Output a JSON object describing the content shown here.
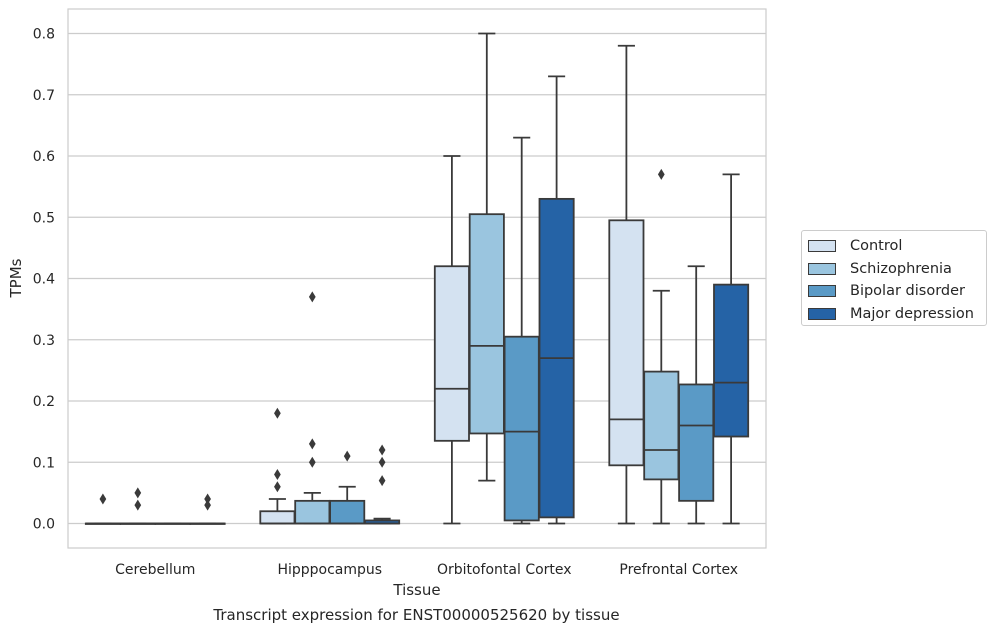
{
  "caption": "Transcript expression for ENST00000525620 by tissue",
  "chart_data": {
    "type": "boxplot",
    "xlabel": "Tissue",
    "ylabel": "TPMs",
    "ylim": [
      -0.04,
      0.84
    ],
    "yticks": [
      "0.0",
      "0.1",
      "0.2",
      "0.3",
      "0.4",
      "0.5",
      "0.6",
      "0.7",
      "0.8"
    ],
    "grid": true,
    "legend_position": "right",
    "categories": [
      "Cerebellum",
      "Hipppocampus",
      "Orbitofontal Cortex",
      "Prefrontal Cortex"
    ],
    "series": [
      {
        "name": "Control",
        "color": "#d4e2f1",
        "boxes": [
          {
            "min": 0,
            "q1": 0,
            "median": 0,
            "q3": 0,
            "max": 0,
            "outliers": [
              0.04
            ]
          },
          {
            "min": 0,
            "q1": 0,
            "median": 0,
            "q3": 0.02,
            "max": 0.04,
            "outliers": [
              0.06,
              0.08,
              0.18
            ]
          },
          {
            "min": 0,
            "q1": 0.135,
            "median": 0.22,
            "q3": 0.42,
            "max": 0.6,
            "outliers": []
          },
          {
            "min": 0,
            "q1": 0.095,
            "median": 0.17,
            "q3": 0.495,
            "max": 0.78,
            "outliers": []
          }
        ]
      },
      {
        "name": "Schizophrenia",
        "color": "#9ac5df",
        "boxes": [
          {
            "min": 0,
            "q1": 0,
            "median": 0,
            "q3": 0,
            "max": 0,
            "outliers": [
              0.03,
              0.05
            ]
          },
          {
            "min": 0,
            "q1": 0,
            "median": 0,
            "q3": 0.037,
            "max": 0.05,
            "outliers": [
              0.1,
              0.13,
              0.37
            ]
          },
          {
            "min": 0.07,
            "q1": 0.147,
            "median": 0.29,
            "q3": 0.505,
            "max": 0.8,
            "outliers": []
          },
          {
            "min": 0,
            "q1": 0.072,
            "median": 0.12,
            "q3": 0.248,
            "max": 0.38,
            "outliers": [
              0.57
            ]
          }
        ]
      },
      {
        "name": "Bipolar disorder",
        "color": "#5a9ac6",
        "boxes": [
          {
            "min": 0,
            "q1": 0,
            "median": 0,
            "q3": 0,
            "max": 0,
            "outliers": []
          },
          {
            "min": 0,
            "q1": 0,
            "median": 0,
            "q3": 0.037,
            "max": 0.06,
            "outliers": [
              0.11
            ]
          },
          {
            "min": 0,
            "q1": 0.005,
            "median": 0.15,
            "q3": 0.305,
            "max": 0.63,
            "outliers": []
          },
          {
            "min": 0,
            "q1": 0.037,
            "median": 0.16,
            "q3": 0.227,
            "max": 0.42,
            "outliers": []
          }
        ]
      },
      {
        "name": "Major depression",
        "color": "#2563a6",
        "boxes": [
          {
            "min": 0,
            "q1": 0,
            "median": 0,
            "q3": 0,
            "max": 0,
            "outliers": [
              0.03,
              0.04
            ]
          },
          {
            "min": 0,
            "q1": 0,
            "median": 0,
            "q3": 0.005,
            "max": 0.008,
            "outliers": [
              0.07,
              0.1,
              0.12
            ]
          },
          {
            "min": 0,
            "q1": 0.01,
            "median": 0.27,
            "q3": 0.53,
            "max": 0.73,
            "outliers": []
          },
          {
            "min": 0,
            "q1": 0.142,
            "median": 0.23,
            "q3": 0.39,
            "max": 0.57,
            "outliers": []
          }
        ]
      }
    ]
  }
}
